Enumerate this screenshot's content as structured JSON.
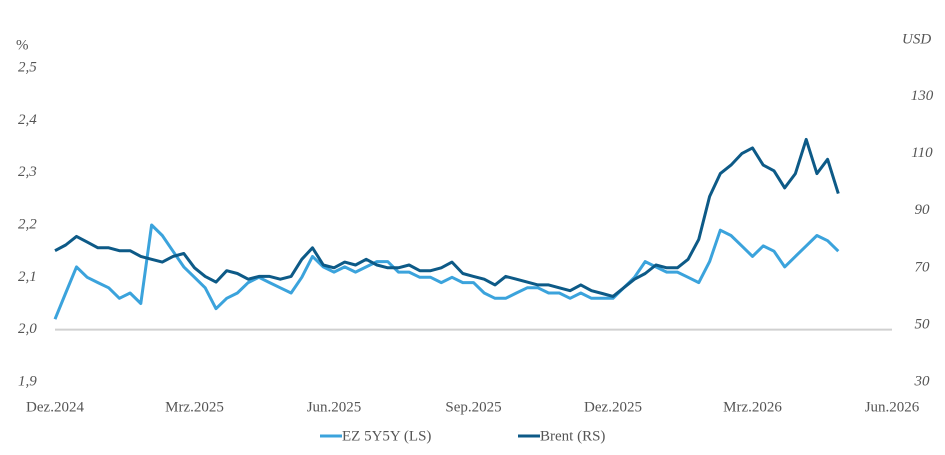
{
  "chart_data": {
    "type": "line",
    "y_label": "%",
    "y2_label": "USD",
    "categories": [
      "Dez.2024",
      null,
      null,
      null,
      null,
      null,
      null,
      null,
      null,
      null,
      null,
      null,
      null,
      "Mrz.2025",
      null,
      null,
      null,
      null,
      null,
      null,
      null,
      null,
      null,
      null,
      null,
      null,
      "Jun.2025",
      null,
      null,
      null,
      null,
      null,
      null,
      null,
      null,
      null,
      null,
      null,
      null,
      "Sep.2025",
      null,
      null,
      null,
      null,
      null,
      null,
      null,
      null,
      null,
      null,
      null,
      null,
      "Dez.2025",
      null,
      null,
      null,
      null,
      null,
      null,
      null,
      null,
      null,
      null,
      null,
      null,
      "Mrz.2026",
      null,
      null,
      null,
      null,
      null,
      null,
      null,
      null,
      null,
      null,
      null,
      null,
      "Jun.2026"
    ],
    "series": [
      {
        "name": "EZ 5Y5Y (LS)",
        "color": "#3ba3dc",
        "values": [
          2.02,
          2.07,
          2.12,
          2.1,
          2.09,
          2.08,
          2.06,
          2.07,
          2.05,
          2.2,
          2.18,
          2.15,
          2.12,
          2.1,
          2.08,
          2.04,
          2.06,
          2.07,
          2.09,
          2.1,
          2.09,
          2.08,
          2.07,
          2.1,
          2.14,
          2.12,
          2.11,
          2.12,
          2.11,
          2.12,
          2.13,
          2.13,
          2.11,
          2.11,
          2.1,
          2.1,
          2.09,
          2.1,
          2.09,
          2.09,
          2.07,
          2.06,
          2.06,
          2.07,
          2.08,
          2.08,
          2.07,
          2.07,
          2.06,
          2.07,
          2.06,
          2.06,
          2.06,
          2.08,
          2.1,
          2.13,
          2.12,
          2.11,
          2.11,
          2.1,
          2.09,
          2.13,
          2.19,
          2.18,
          2.16,
          2.14,
          2.16,
          2.15,
          2.12,
          2.14,
          2.16,
          2.18,
          2.17,
          2.15,
          null,
          null,
          null,
          null,
          null
        ]
      },
      {
        "name": "Brent (RS)",
        "color": "#0d5a87",
        "axis": "y2",
        "values": [
          76,
          78,
          81,
          79,
          77,
          77,
          76,
          76,
          74,
          73,
          72,
          74,
          75,
          70,
          67,
          65,
          69,
          68,
          66,
          67,
          67,
          66,
          67,
          73,
          77,
          71,
          70,
          72,
          71,
          73,
          71,
          70,
          70,
          71,
          69,
          69,
          70,
          72,
          68,
          67,
          66,
          64,
          67,
          66,
          65,
          64,
          64,
          63,
          62,
          64,
          62,
          61,
          60,
          63,
          66,
          68,
          71,
          70,
          70,
          73,
          80,
          95,
          103,
          106,
          110,
          112,
          106,
          104,
          98,
          103,
          115,
          103,
          108,
          96,
          null,
          null,
          null,
          null,
          null
        ]
      }
    ],
    "ylim": [
      1.9,
      2.5
    ],
    "yticks": [
      {
        "value": 1.9,
        "label": "1,9"
      },
      {
        "value": 2.0,
        "label": "2,0"
      },
      {
        "value": 2.1,
        "label": "2,1"
      },
      {
        "value": 2.2,
        "label": "2,2"
      },
      {
        "value": 2.3,
        "label": "2,3"
      },
      {
        "value": 2.4,
        "label": "2,4"
      },
      {
        "value": 2.5,
        "label": "2,5"
      }
    ],
    "y2lim": [
      30,
      140
    ],
    "y2ticks": [
      30,
      50,
      70,
      90,
      110,
      130
    ],
    "legend": "bottom"
  }
}
